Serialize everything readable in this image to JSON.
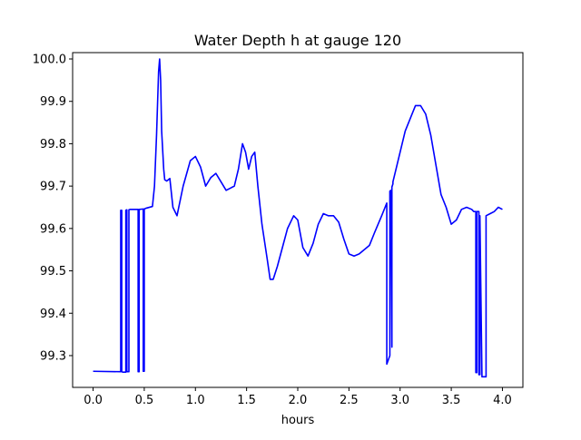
{
  "chart_data": {
    "type": "line",
    "title": "Water Depth h at gauge 120",
    "xlabel": "hours",
    "ylabel": "",
    "xlim": [
      -0.2,
      4.2
    ],
    "ylim": [
      99.225,
      100.015
    ],
    "xticks": [
      0.0,
      0.5,
      1.0,
      1.5,
      2.0,
      2.5,
      3.0,
      3.5,
      4.0
    ],
    "xtick_labels": [
      "0.0",
      "0.5",
      "1.0",
      "1.5",
      "2.0",
      "2.5",
      "3.0",
      "3.5",
      "4.0"
    ],
    "yticks": [
      99.3,
      99.4,
      99.5,
      99.6,
      99.7,
      99.8,
      99.9,
      100.0
    ],
    "ytick_labels": [
      "99.3",
      "99.4",
      "99.5",
      "99.6",
      "99.7",
      "99.8",
      "99.9",
      "100.0"
    ],
    "grid": false,
    "legend": "none",
    "series": [
      {
        "color": "#0000ff",
        "x": [
          0.0,
          0.27,
          0.27,
          0.28,
          0.28,
          0.29,
          0.32,
          0.32,
          0.33,
          0.33,
          0.34,
          0.35,
          0.35,
          0.36,
          0.44,
          0.44,
          0.45,
          0.45,
          0.49,
          0.49,
          0.5,
          0.5,
          0.52,
          0.58,
          0.6,
          0.62,
          0.64,
          0.65,
          0.66,
          0.67,
          0.69,
          0.7,
          0.72,
          0.75,
          0.78,
          0.82,
          0.88,
          0.95,
          1.0,
          1.05,
          1.1,
          1.15,
          1.2,
          1.25,
          1.3,
          1.38,
          1.42,
          1.46,
          1.49,
          1.52,
          1.55,
          1.58,
          1.61,
          1.65,
          1.7,
          1.73,
          1.76,
          1.8,
          1.85,
          1.9,
          1.96,
          2.0,
          2.05,
          2.1,
          2.15,
          2.2,
          2.25,
          2.3,
          2.35,
          2.4,
          2.45,
          2.5,
          2.55,
          2.6,
          2.7,
          2.75,
          2.82,
          2.87,
          2.87,
          2.9,
          2.9,
          2.91,
          2.92,
          2.92,
          2.93,
          2.93,
          2.97,
          3.05,
          3.1,
          3.15,
          3.2,
          3.25,
          3.3,
          3.35,
          3.4,
          3.45,
          3.5,
          3.55,
          3.6,
          3.65,
          3.7,
          3.72,
          3.74,
          3.74,
          3.75,
          3.75,
          3.77,
          3.77,
          3.78,
          3.78,
          3.8,
          3.84,
          3.84,
          3.88,
          3.92,
          3.96,
          4.0
        ],
        "y": [
          99.263,
          99.262,
          99.643,
          99.643,
          99.262,
          99.261,
          99.261,
          99.643,
          99.644,
          99.262,
          99.262,
          99.262,
          99.644,
          99.645,
          99.645,
          99.262,
          99.262,
          99.645,
          99.646,
          99.263,
          99.263,
          99.646,
          99.648,
          99.652,
          99.7,
          99.82,
          99.97,
          100.0,
          99.95,
          99.83,
          99.74,
          99.715,
          99.712,
          99.718,
          99.65,
          99.63,
          99.7,
          99.76,
          99.77,
          99.745,
          99.7,
          99.72,
          99.73,
          99.71,
          99.69,
          99.7,
          99.74,
          99.8,
          99.78,
          99.74,
          99.77,
          99.78,
          99.7,
          99.61,
          99.53,
          99.48,
          99.48,
          99.51,
          99.555,
          99.6,
          99.63,
          99.62,
          99.555,
          99.535,
          99.565,
          99.61,
          99.635,
          99.63,
          99.63,
          99.615,
          99.575,
          99.54,
          99.535,
          99.54,
          99.56,
          99.59,
          99.63,
          99.66,
          99.28,
          99.3,
          99.688,
          99.69,
          99.32,
          99.698,
          99.705,
          99.71,
          99.75,
          99.83,
          99.86,
          99.89,
          99.89,
          99.87,
          99.82,
          99.75,
          99.68,
          99.65,
          99.61,
          99.62,
          99.645,
          99.65,
          99.645,
          99.64,
          99.64,
          99.26,
          99.26,
          99.64,
          99.64,
          99.255,
          99.255,
          99.63,
          99.25,
          99.25,
          99.63,
          99.635,
          99.64,
          99.65,
          99.645
        ]
      }
    ]
  }
}
